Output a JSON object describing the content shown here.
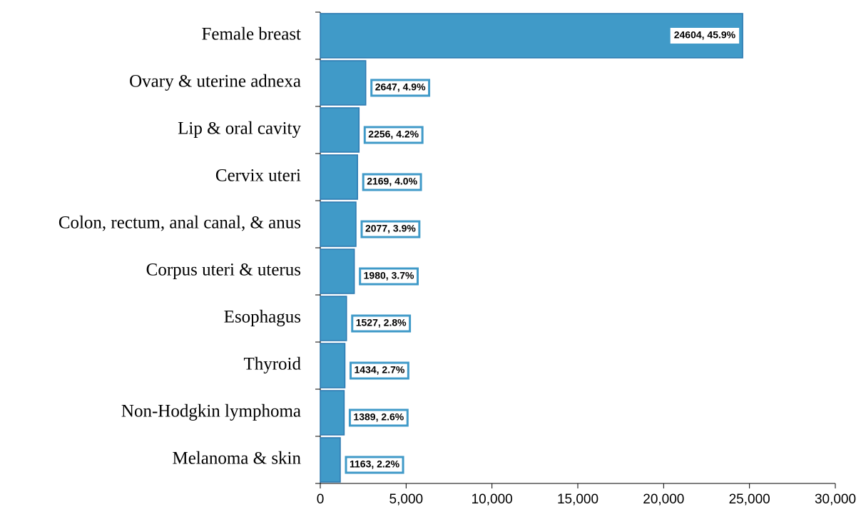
{
  "chart_data": {
    "type": "bar",
    "orientation": "horizontal",
    "categories": [
      "Female breast",
      "Ovary & uterine adnexa",
      "Lip & oral cavity",
      "Cervix uteri",
      "Colon, rectum, anal canal, & anus",
      "Corpus uteri & uterus",
      "Esophagus",
      "Thyroid",
      "Non-Hodgkin lymphoma",
      "Melanoma & skin"
    ],
    "values": [
      24604,
      2647,
      2256,
      2169,
      2077,
      1980,
      1527,
      1434,
      1389,
      1163
    ],
    "value_labels": [
      "24604, 45.9%",
      "2647, 4.9%",
      "2256, 4.2%",
      "2169, 4.0%",
      "2077, 3.9%",
      "1980, 3.7%",
      "1527, 2.8%",
      "1434, 2.7%",
      "1389, 2.6%",
      "1163, 2.2%"
    ],
    "color": "#409ac8",
    "xlim": [
      0,
      30000
    ],
    "xticks": [
      0,
      {
        "value": 5000,
        "label": "5,000"
      },
      {
        "value": 10000,
        "label": "10,000"
      },
      {
        "value": 15000,
        "label": "15,000"
      },
      {
        "value": 20000,
        "label": "20,000"
      },
      {
        "value": 25000,
        "label": "25,000"
      },
      {
        "value": 30000,
        "label": "30,000"
      }
    ],
    "grid": false
  }
}
